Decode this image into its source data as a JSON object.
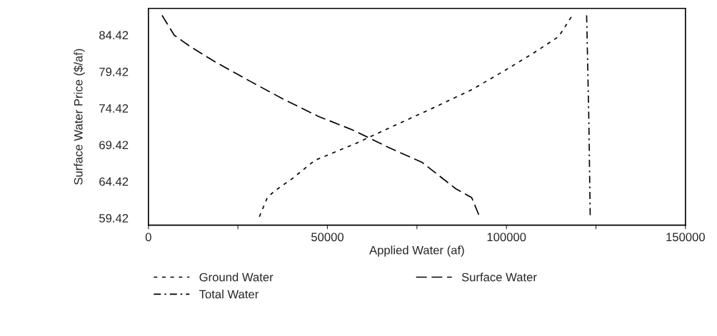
{
  "chart_data": {
    "type": "line",
    "xlabel": "Applied Water (af)",
    "ylabel": "Surface Water Price ($/af)",
    "xlim": [
      0,
      150000
    ],
    "ylim": [
      58.45,
      88.05
    ],
    "xticks": [
      0,
      {
        "value": 25000,
        "label": null
      },
      50000,
      {
        "value": 75000,
        "label": null
      },
      100000,
      {
        "value": 125000,
        "label": null
      },
      150000
    ],
    "yticks": [
      59.42,
      64.42,
      69.42,
      74.42,
      79.42,
      84.42
    ],
    "grid": false,
    "legend": "bottom",
    "series": [
      {
        "name": "Ground Water",
        "color": "#000000",
        "line_style": "dotted",
        "x": [
          31000,
          33200,
          35200,
          39900,
          46500,
          57900,
          68500,
          79300,
          90500,
          99300,
          107400,
          114600,
          118400
        ],
        "values": [
          59.6,
          62.2,
          63.1,
          64.7,
          67.3,
          69.6,
          72.0,
          74.4,
          77.0,
          79.5,
          81.9,
          84.2,
          87.1
        ]
      },
      {
        "name": "Surface Water",
        "color": "#000000",
        "line_style": "dashed",
        "x": [
          3800,
          7200,
          11800,
          18800,
          28400,
          37900,
          47500,
          57300,
          66900,
          76500,
          85900,
          90300,
          92500
        ],
        "values": [
          87.1,
          84.4,
          82.8,
          80.7,
          78.1,
          75.6,
          73.3,
          71.4,
          69.1,
          67.0,
          63.4,
          62.2,
          59.6
        ]
      },
      {
        "name": "Total Water",
        "color": "#000000",
        "line_style": "dashdot",
        "x": [
          122400,
          123000,
          123400
        ],
        "values": [
          87.1,
          73.3,
          59.6
        ]
      }
    ]
  }
}
